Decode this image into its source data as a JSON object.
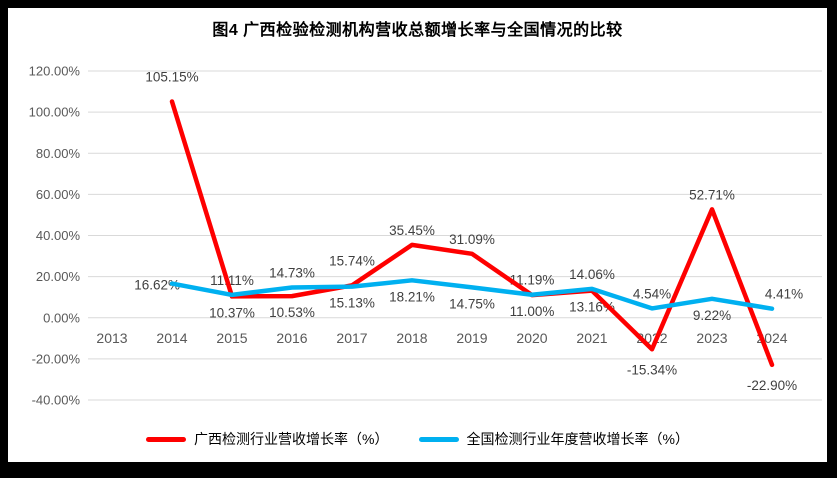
{
  "title": "图4 广西检验检测机构营收总额增长率与全国情况的比较",
  "frame": {
    "border_color": "#000000",
    "canvas_color": "#ffffff"
  },
  "colors": {
    "guangxi_line": "#fe0000",
    "national_line": "#00b0f0",
    "gridline": "#d9d9d9",
    "axis_text": "#595959",
    "data_label_text": "#404040",
    "title_text": "#000000"
  },
  "chart_data": {
    "type": "line",
    "title": "图4 广西检验检测机构营收总额增长率与全国情况的比较",
    "categories": [
      "2013",
      "2014",
      "2015",
      "2016",
      "2017",
      "2018",
      "2019",
      "2020",
      "2021",
      "2022",
      "2023",
      "2024"
    ],
    "series": [
      {
        "name": "广西检测行业营收增长率（%）",
        "color": "#fe0000",
        "values": [
          null,
          105.15,
          10.37,
          10.53,
          15.74,
          35.45,
          31.09,
          11.0,
          13.16,
          -15.34,
          52.71,
          -22.9
        ],
        "label_positions": [
          null,
          "above-far",
          "below",
          "below",
          "above-far",
          "above",
          "above",
          "below",
          "below",
          "below-far",
          "above",
          "below-far"
        ]
      },
      {
        "name": "全国检测行业年度营收增长率（%）",
        "color": "#00b0f0",
        "values": [
          null,
          16.62,
          11.11,
          14.73,
          15.13,
          18.21,
          14.75,
          11.19,
          14.06,
          4.54,
          9.22,
          4.41
        ],
        "label_positions": [
          null,
          "left",
          "above",
          "above",
          "below",
          "below",
          "below",
          "above",
          "above",
          "above",
          "below",
          "right"
        ]
      }
    ],
    "y_axis": {
      "min": -40,
      "max": 120,
      "step": 20,
      "tick_labels": [
        "120.00%",
        "100.00%",
        "80.00%",
        "60.00%",
        "40.00%",
        "20.00%",
        "0.00%",
        "-20.00%",
        "-40.00%"
      ]
    },
    "x_axis": {
      "labels": [
        "2013",
        "2014",
        "2015",
        "2016",
        "2017",
        "2018",
        "2019",
        "2020",
        "2021",
        "2022",
        "2023",
        "2024"
      ]
    },
    "grid": true,
    "legend_position": "bottom",
    "data_label_format": "0.00%"
  }
}
